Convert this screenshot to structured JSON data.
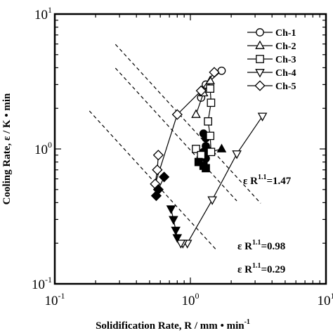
{
  "chart_data": {
    "type": "scatter",
    "xscale": "log",
    "yscale": "log",
    "xlim": [
      0.1,
      10
    ],
    "ylim": [
      0.1,
      10
    ],
    "xlabel": {
      "main": "Solidification Rate, R / mm",
      "dot": "•",
      "unit": "min",
      "exp": "-1"
    },
    "ylabel": {
      "main": "Cooling Rate, ε / K",
      "dot": "•",
      "unit": "min"
    },
    "xticks": [
      {
        "value": 0.1,
        "base": "10",
        "exp": "-1"
      },
      {
        "value": 1,
        "base": "10",
        "exp": "0"
      },
      {
        "value": 10,
        "base": "10",
        "exp": "1"
      }
    ],
    "yticks": [
      {
        "value": 0.1,
        "base": "10",
        "exp": "-1"
      },
      {
        "value": 1,
        "base": "10",
        "exp": "0"
      },
      {
        "value": 10,
        "base": "10",
        "exp": "1"
      }
    ],
    "legend_position": "top-right",
    "series": [
      {
        "name": "Ch-1",
        "marker": "circle",
        "open": [
          [
            1.2,
            2.4
          ],
          [
            1.3,
            3.0
          ],
          [
            1.7,
            3.8
          ]
        ],
        "filled": [
          [
            1.25,
            1.3
          ],
          [
            1.3,
            1.2
          ],
          [
            1.3,
            1.05
          ],
          [
            1.25,
            0.95
          ],
          [
            1.3,
            0.85
          ]
        ]
      },
      {
        "name": "Ch-2",
        "marker": "triangle-up",
        "open": [
          [
            1.1,
            1.8
          ],
          [
            1.25,
            2.6
          ],
          [
            1.4,
            3.2
          ]
        ],
        "filled": [
          [
            1.4,
            0.95
          ],
          [
            1.7,
            1.0
          ]
        ]
      },
      {
        "name": "Ch-3",
        "marker": "square",
        "open": [
          [
            1.4,
            2.8
          ],
          [
            1.42,
            2.2
          ],
          [
            1.35,
            1.6
          ],
          [
            1.4,
            1.25
          ],
          [
            1.42,
            0.95
          ],
          [
            1.1,
            1.0
          ],
          [
            1.2,
            0.9
          ]
        ],
        "filled": [
          [
            1.25,
            0.75
          ],
          [
            1.15,
            0.8
          ],
          [
            1.3,
            0.72
          ]
        ]
      },
      {
        "name": "Ch-4",
        "marker": "triangle-down",
        "open": [
          [
            3.4,
            1.75
          ],
          [
            2.2,
            0.92
          ],
          [
            1.45,
            0.42
          ],
          [
            0.95,
            0.2
          ],
          [
            0.88,
            0.2
          ],
          [
            0.85,
            0.2
          ]
        ],
        "filled": [
          [
            0.72,
            0.36
          ],
          [
            0.75,
            0.3
          ],
          [
            0.78,
            0.25
          ],
          [
            0.8,
            0.22
          ]
        ]
      },
      {
        "name": "Ch-5",
        "marker": "diamond",
        "open": [
          [
            0.58,
            0.9
          ],
          [
            0.57,
            0.7
          ],
          [
            0.55,
            0.55
          ],
          [
            0.8,
            1.8
          ],
          [
            1.2,
            2.7
          ],
          [
            1.5,
            3.7
          ]
        ],
        "filled": [
          [
            0.64,
            0.62
          ],
          [
            0.58,
            0.5
          ],
          [
            0.56,
            0.45
          ]
        ]
      }
    ],
    "reference_lines": [
      {
        "label_eps": "ε R",
        "label_exp": "1.1",
        "label_val": "=1.47",
        "C": 1.47,
        "x_from": 0.28,
        "x_to": 3.3
      },
      {
        "label_eps": "ε R",
        "label_exp": "1.1",
        "label_val": "=0.98",
        "C": 0.98,
        "x_from": 0.28,
        "x_to": 2.2
      },
      {
        "label_eps": "ε R",
        "label_exp": "1.1",
        "label_val": "=0.29",
        "C": 0.29,
        "x_from": 0.18,
        "x_to": 1.55
      }
    ]
  }
}
